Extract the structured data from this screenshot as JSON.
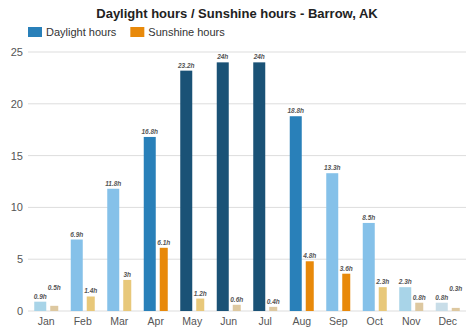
{
  "chart_data": {
    "type": "bar",
    "title": "Daylight hours / Sunshine hours - Barrow, AK",
    "categories": [
      "Jan",
      "Feb",
      "Mar",
      "Apr",
      "May",
      "Jun",
      "Jul",
      "Aug",
      "Sep",
      "Oct",
      "Nov",
      "Dec"
    ],
    "series": [
      {
        "name": "Daylight hours",
        "color": "#2980b9",
        "colors": [
          "#a8d4e8",
          "#85c1e9",
          "#85c1e9",
          "#2980b9",
          "#1a5276",
          "#1a5276",
          "#1a5276",
          "#2980b9",
          "#85c1e9",
          "#85c1e9",
          "#a8d4e8",
          "#c8dde8"
        ],
        "values": [
          0.9,
          6.9,
          11.8,
          16.8,
          23.2,
          24.0,
          24.0,
          18.8,
          13.3,
          8.5,
          2.3,
          0.8
        ],
        "value_labels": [
          "0.9h",
          "6.9h",
          "11.8h",
          "16.8h",
          "23.2h",
          "24h",
          "24h",
          "18.8h",
          "13.3h",
          "8.5h",
          "2.3h",
          "0.8h"
        ]
      },
      {
        "name": "Sunshine hours",
        "color": "#e8890a",
        "colors": [
          "#ddc8a0",
          "#e8c87a",
          "#e8c87a",
          "#e8890a",
          "#e8c87a",
          "#ddc8a0",
          "#ddc8a0",
          "#e8890a",
          "#e8890a",
          "#e8c87a",
          "#ddc8a0",
          "#ddc8a0"
        ],
        "values": [
          0.5,
          1.4,
          3.0,
          6.1,
          1.2,
          0.6,
          0.4,
          4.8,
          3.6,
          2.3,
          0.8,
          0.3
        ],
        "value_labels": [
          "0.5h",
          "1.4h",
          "3h",
          "6.1h",
          "1.2h",
          "0.6h",
          "0.4h",
          "4.8h",
          "3.6h",
          "2.3h",
          "0.8h",
          "0.3h"
        ]
      }
    ],
    "ylim": [
      0,
      25
    ],
    "yticks": [
      0,
      5,
      10,
      15,
      20,
      25
    ],
    "grid": true,
    "legend": "upper left",
    "data_labels": true
  }
}
